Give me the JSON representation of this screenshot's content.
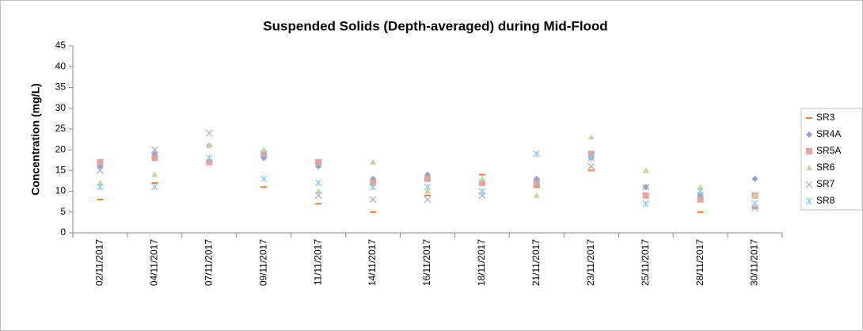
{
  "chart_data": {
    "type": "scatter",
    "title": "Suspended Solids (Depth-averaged) during Mid-Flood",
    "y_label": "Concentration (mg/L)",
    "categories": [
      "02/11/2017",
      "04/11/2017",
      "07/11/2017",
      "09/11/2017",
      "11/11/2017",
      "14/11/2017",
      "16/11/2017",
      "18/11/2017",
      "21/11/2017",
      "23/11/2017",
      "25/11/2017",
      "28/11/2017",
      "30/11/2017"
    ],
    "series": [
      {
        "name": "SR3",
        "color": "#ed7d31",
        "marker": "dash",
        "values": [
          8,
          12,
          17,
          11,
          7,
          5,
          9,
          14,
          11,
          15,
          9,
          5,
          6
        ]
      },
      {
        "name": "SR4A",
        "color": "#8ea4cf",
        "marker": "diamond",
        "values": [
          16,
          19,
          21,
          18,
          16,
          13,
          14,
          12,
          13,
          18,
          11,
          9,
          13
        ]
      },
      {
        "name": "SR5A",
        "color": "#e3a3a3",
        "marker": "square",
        "values": [
          17,
          18,
          17,
          19,
          17,
          12,
          13,
          12,
          12,
          19,
          9,
          8,
          9
        ]
      },
      {
        "name": "SR6",
        "color": "#c3d69b",
        "marker": "triangle",
        "values": [
          12,
          14,
          21,
          20,
          10,
          17,
          10,
          13,
          9,
          23,
          15,
          11,
          9
        ]
      },
      {
        "name": "SR7",
        "color": "#a9a9c9",
        "marker": "x",
        "values": [
          15,
          20,
          24,
          19,
          9,
          8,
          8,
          9,
          12,
          16,
          11,
          9,
          6
        ]
      },
      {
        "name": "SR8",
        "color": "#8dcde6",
        "marker": "asterisk",
        "values": [
          11,
          11,
          18,
          13,
          12,
          11,
          11,
          10,
          19,
          18,
          7,
          10,
          7
        ]
      }
    ],
    "ylim": [
      0,
      45
    ],
    "yticks": [
      0,
      5,
      10,
      15,
      20,
      25,
      30,
      35,
      40,
      45
    ],
    "grid": false,
    "legend": "right"
  }
}
